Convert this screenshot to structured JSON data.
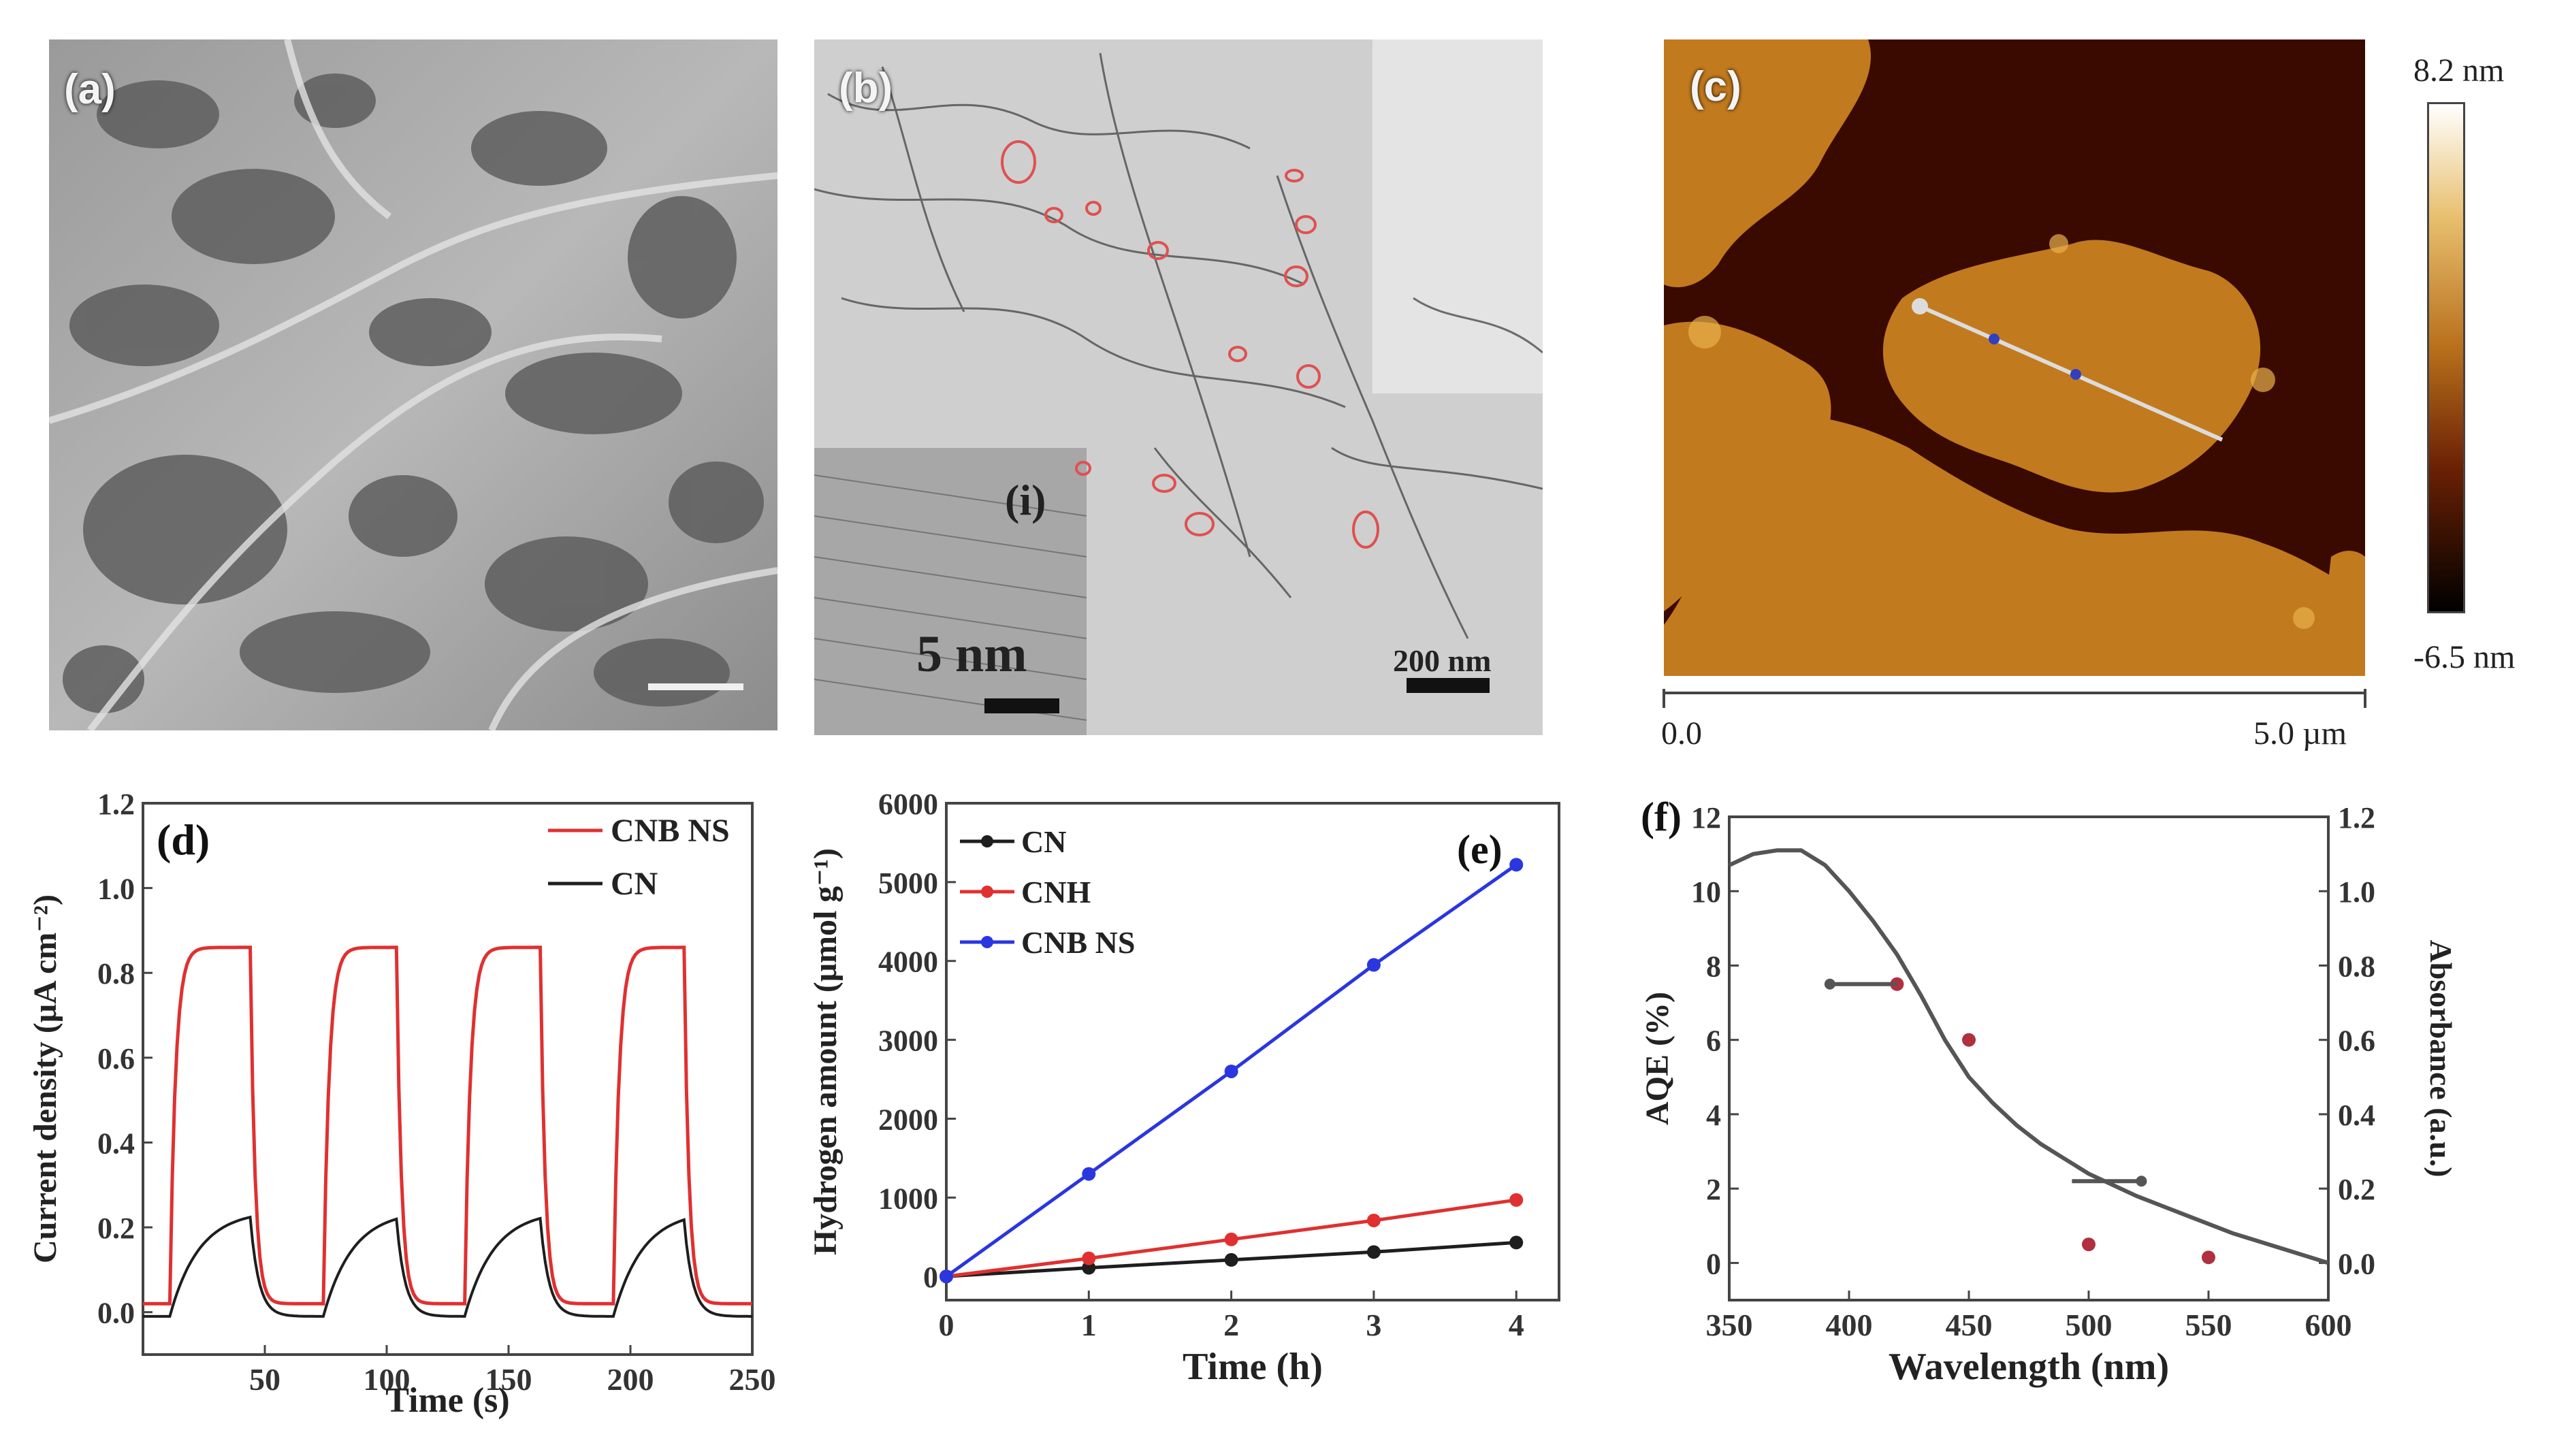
{
  "panels": {
    "a": {
      "label": "(a)"
    },
    "b": {
      "label": "(b)",
      "inset_label": "(i)",
      "inset_scale": "5 nm",
      "scale": "200 nm"
    },
    "c": {
      "label": "(c)",
      "cbar_max": "8.2 nm",
      "cbar_min": "-6.5 nm",
      "axis_start": "0.0",
      "axis_end": "5.0 µm"
    }
  },
  "colors": {
    "afm_dark": "#3a0a00",
    "afm_mid": "#8a3a06",
    "afm_light": "#d08a22",
    "red": "#e03030",
    "black": "#1e1e1e",
    "blue": "#2a36e0",
    "gray": "#555555"
  },
  "chart_data": [
    {
      "id": "d",
      "type": "line",
      "label": "(d)",
      "xlabel": "Time (s)",
      "ylabel": "Current density (μA cm⁻²)",
      "xlim": [
        0,
        250
      ],
      "ylim": [
        -0.1,
        1.2
      ],
      "xticks": [
        "50",
        "100",
        "150",
        "200",
        "250"
      ],
      "yticks": [
        "0.0",
        "0.2",
        "0.4",
        "0.6",
        "0.8",
        "1.0",
        "1.2"
      ],
      "legend": "top-right",
      "on_intervals": [
        [
          12,
          45
        ],
        [
          75,
          105
        ],
        [
          133,
          164
        ],
        [
          194,
          223
        ]
      ],
      "series": [
        {
          "name": "CNB NS",
          "color": "#e03030",
          "on_level": 0.86,
          "off_level": 0.02
        },
        {
          "name": "CN",
          "color": "#1e1e1e",
          "on_level": 0.24,
          "off_level": -0.01
        }
      ]
    },
    {
      "id": "e",
      "type": "line",
      "label": "(e)",
      "xlabel": "Time (h)",
      "ylabel": "Hydrogen amount (μmol g⁻¹)",
      "xlim": [
        0,
        4.3
      ],
      "ylim": [
        -300,
        6000
      ],
      "xticks": [
        "0",
        "1",
        "2",
        "3",
        "4"
      ],
      "yticks": [
        "0",
        "1000",
        "2000",
        "3000",
        "4000",
        "5000",
        "6000"
      ],
      "legend": "top-left",
      "x": [
        0,
        1,
        2,
        3,
        4
      ],
      "series": [
        {
          "name": "CN",
          "color": "#1e1e1e",
          "values": [
            0,
            110,
            210,
            310,
            430
          ]
        },
        {
          "name": "CNH",
          "color": "#e03030",
          "values": [
            0,
            230,
            470,
            710,
            970
          ]
        },
        {
          "name": "CNB NS",
          "color": "#2a36e0",
          "values": [
            0,
            1300,
            2600,
            3950,
            5220
          ]
        }
      ]
    },
    {
      "id": "f",
      "type": "scatter",
      "label": "(f)",
      "xlabel": "Wavelength (nm)",
      "ylabel": "AQE (%)",
      "ylabel_right": "Absorbance (a.u.)",
      "xlim": [
        350,
        600
      ],
      "ylim": [
        -1,
        12
      ],
      "ylim_right": [
        -0.1,
        1.2
      ],
      "xticks": [
        "350",
        "400",
        "450",
        "500",
        "550",
        "600"
      ],
      "yticks": [
        "0",
        "2",
        "4",
        "6",
        "8",
        "10",
        "12"
      ],
      "yticks_right": [
        "0.0",
        "0.2",
        "0.4",
        "0.6",
        "0.8",
        "1.0",
        "1.2"
      ],
      "aqe_points": {
        "x": [
          420,
          450,
          500,
          550
        ],
        "y": [
          7.5,
          6.0,
          0.5,
          0.15
        ],
        "color": "#b03040"
      },
      "absorbance": {
        "x": [
          350,
          360,
          370,
          380,
          390,
          400,
          410,
          420,
          430,
          440,
          450,
          460,
          470,
          480,
          490,
          500,
          520,
          540,
          560,
          580,
          600
        ],
        "y": [
          1.07,
          1.1,
          1.11,
          1.11,
          1.07,
          1.0,
          0.92,
          0.83,
          0.72,
          0.6,
          0.5,
          0.43,
          0.37,
          0.32,
          0.28,
          0.24,
          0.18,
          0.13,
          0.08,
          0.04,
          0.0
        ],
        "color": "#555555"
      }
    }
  ]
}
